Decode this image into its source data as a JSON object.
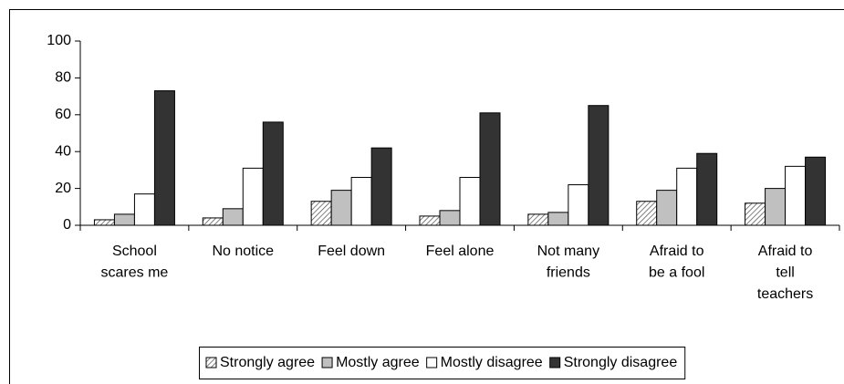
{
  "chart_data": {
    "type": "bar",
    "categories": [
      "School scares me",
      "No notice",
      "Feel down",
      "Feel alone",
      "Not many friends",
      "Afraid to be a fool",
      "Afraid to tell teachers"
    ],
    "series": [
      {
        "name": "Strongly agree",
        "color": "#555555",
        "values": [
          3,
          4,
          13,
          5,
          6,
          13,
          12
        ]
      },
      {
        "name": "Mostly agree",
        "color": "#c0c0c0",
        "values": [
          6,
          9,
          19,
          8,
          7,
          19,
          20
        ]
      },
      {
        "name": "Mostly disagree",
        "color": "#ffffff",
        "values": [
          17,
          31,
          26,
          26,
          22,
          31,
          32
        ]
      },
      {
        "name": "Strongly disagree",
        "color": "#333333",
        "values": [
          73,
          56,
          42,
          61,
          65,
          39,
          37
        ]
      }
    ],
    "ylim": [
      0,
      100
    ],
    "yticks": [
      0,
      20,
      40,
      60,
      80,
      100
    ],
    "grid": false,
    "legend": "bottom"
  }
}
